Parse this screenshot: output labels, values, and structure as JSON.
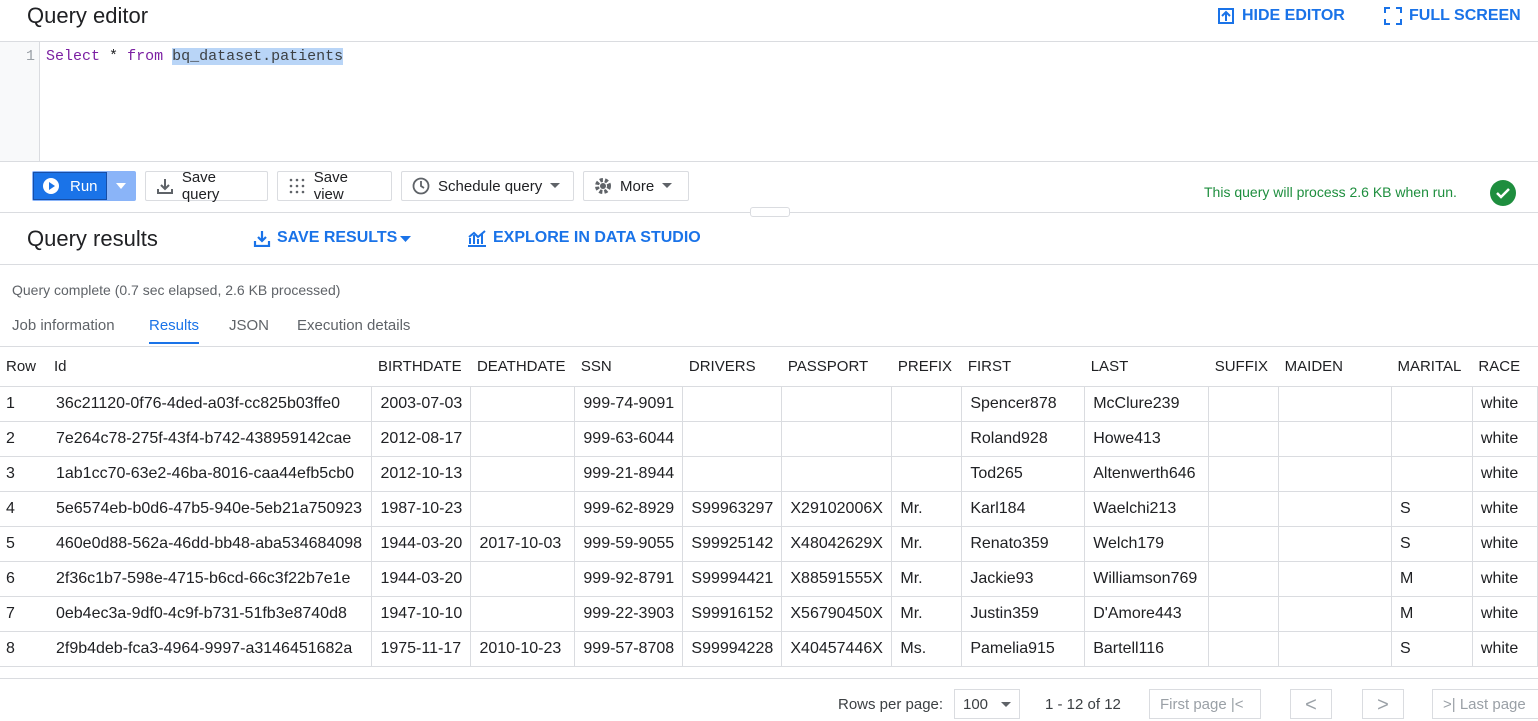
{
  "editor": {
    "title": "Query editor",
    "hide_editor": "HIDE EDITOR",
    "full_screen": "FULL SCREEN",
    "line_number": "1",
    "code": {
      "keyword_select": "Select",
      "star": "*",
      "keyword_from": "from",
      "table": "bq_dataset.patients"
    }
  },
  "toolbar": {
    "run": "Run",
    "save_query": "Save query",
    "save_view": "Save view",
    "schedule_query": "Schedule query",
    "more": "More",
    "validation": "This query will process 2.6 KB when run."
  },
  "results": {
    "title": "Query results",
    "save_results": "SAVE RESULTS",
    "explore": "EXPLORE IN DATA STUDIO",
    "status": "Query complete (0.7 sec elapsed, 2.6 KB processed)",
    "tabs": [
      "Job information",
      "Results",
      "JSON",
      "Execution details"
    ],
    "active_tab": 1
  },
  "table": {
    "columns": [
      "Row",
      "Id",
      "BIRTHDATE",
      "DEATHDATE",
      "SSN",
      "DRIVERS",
      "PASSPORT",
      "PREFIX",
      "FIRST",
      "LAST",
      "SUFFIX",
      "MAIDEN",
      "MARITAL",
      "RACE"
    ],
    "rows": [
      [
        "1",
        "36c21120-0f76-4ded-a03f-cc825b03ffe0",
        "2003-07-03",
        null,
        "999-74-9091",
        null,
        null,
        null,
        "Spencer878",
        "McClure239",
        null,
        null,
        null,
        "white"
      ],
      [
        "2",
        "7e264c78-275f-43f4-b742-438959142cae",
        "2012-08-17",
        null,
        "999-63-6044",
        null,
        null,
        null,
        "Roland928",
        "Howe413",
        null,
        null,
        null,
        "white"
      ],
      [
        "3",
        "1ab1cc70-63e2-46ba-8016-caa44efb5cb0",
        "2012-10-13",
        null,
        "999-21-8944",
        null,
        null,
        null,
        "Tod265",
        "Altenwerth646",
        null,
        null,
        null,
        "white"
      ],
      [
        "4",
        "5e6574eb-b0d6-47b5-940e-5eb21a750923",
        "1987-10-23",
        null,
        "999-62-8929",
        "S99963297",
        "X29102006X",
        "Mr.",
        "Karl184",
        "Waelchi213",
        null,
        null,
        "S",
        "white"
      ],
      [
        "5",
        "460e0d88-562a-46dd-bb48-aba534684098",
        "1944-03-20",
        "2017-10-03",
        "999-59-9055",
        "S99925142",
        "X48042629X",
        "Mr.",
        "Renato359",
        "Welch179",
        null,
        null,
        "S",
        "white"
      ],
      [
        "6",
        "2f36c1b7-598e-4715-b6cd-66c3f22b7e1e",
        "1944-03-20",
        null,
        "999-92-8791",
        "S99994421",
        "X88591555X",
        "Mr.",
        "Jackie93",
        "Williamson769",
        null,
        null,
        "M",
        "white"
      ],
      [
        "7",
        "0eb4ec3a-9df0-4c9f-b731-51fb3e8740d8",
        "1947-10-10",
        null,
        "999-22-3903",
        "S99916152",
        "X56790450X",
        "Mr.",
        "Justin359",
        "D'Amore443",
        null,
        null,
        "M",
        "white"
      ],
      [
        "8",
        "2f9b4deb-fca3-4964-9997-a3146451682a",
        "1975-11-17",
        "2010-10-23",
        "999-57-8708",
        "S99994228",
        "X40457446X",
        "Ms.",
        "Pamelia915",
        "Bartell116",
        null,
        null,
        "S",
        "white"
      ]
    ]
  },
  "pagination": {
    "rows_per_page_label": "Rows per page:",
    "rows_per_page": "100",
    "range": "1 - 12 of 12",
    "first_page": "First page",
    "last_page": "Last page"
  }
}
